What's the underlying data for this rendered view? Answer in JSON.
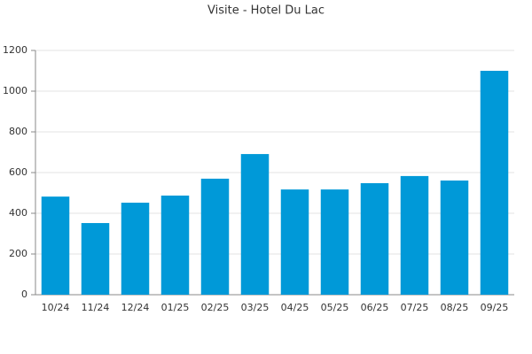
{
  "chart_data": {
    "type": "bar",
    "title": "Visite - Hotel Du Lac",
    "categories": [
      "10/24",
      "11/24",
      "12/24",
      "01/25",
      "02/25",
      "03/25",
      "04/25",
      "05/25",
      "06/25",
      "07/25",
      "08/25",
      "09/25"
    ],
    "values": [
      482,
      352,
      452,
      487,
      570,
      691,
      517,
      517,
      548,
      583,
      561,
      1100
    ],
    "color": "#0099d8",
    "ylim": [
      0,
      1200
    ],
    "yticks": [
      0,
      200,
      400,
      600,
      800,
      1000,
      1200
    ],
    "grid": true
  }
}
